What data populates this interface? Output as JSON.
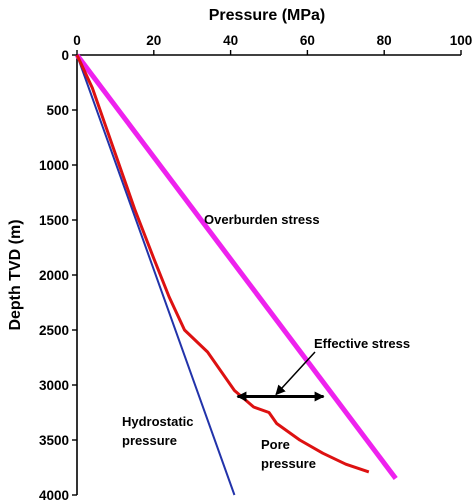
{
  "chart_data": {
    "type": "line",
    "xlabel": "Pressure (MPa)",
    "ylabel": "Depth TVD (m)",
    "xlim": [
      0,
      100
    ],
    "ylim": [
      0,
      4000
    ],
    "y_inverted": true,
    "x_axis_position": "top",
    "x_ticks": [
      0,
      20,
      40,
      60,
      80,
      100
    ],
    "y_ticks": [
      0,
      500,
      1000,
      1500,
      2000,
      2500,
      3000,
      3500,
      4000
    ],
    "grid": false,
    "legend": "none",
    "series": [
      {
        "key": "overburden",
        "color": "#ee22ee",
        "points": [
          [
            0,
            0
          ],
          [
            83,
            3850
          ]
        ]
      },
      {
        "key": "hydrostatic",
        "color": "#2233aa",
        "points": [
          [
            0,
            0
          ],
          [
            41,
            4000
          ]
        ]
      },
      {
        "key": "pore",
        "color": "#dd1111",
        "points": [
          [
            0,
            0
          ],
          [
            4,
            300
          ],
          [
            10,
            900
          ],
          [
            15,
            1400
          ],
          [
            20,
            1850
          ],
          [
            24,
            2200
          ],
          [
            28,
            2500
          ],
          [
            34,
            2700
          ],
          [
            41,
            3050
          ],
          [
            46,
            3200
          ],
          [
            50,
            3250
          ],
          [
            52,
            3350
          ],
          [
            58,
            3500
          ],
          [
            64,
            3620
          ],
          [
            70,
            3720
          ],
          [
            76,
            3790
          ]
        ]
      }
    ],
    "annotations": {
      "overburden": "Overburden stress",
      "effective_stress": "Effective stress",
      "hydrostatic_line1": "Hydrostatic",
      "hydrostatic_line2": "pressure",
      "pore_line1": "Pore",
      "pore_line2": "pressure"
    },
    "effective_stress_arrow": {
      "depth": 3050,
      "from_pressure": 41,
      "to_pressure": 65
    }
  }
}
